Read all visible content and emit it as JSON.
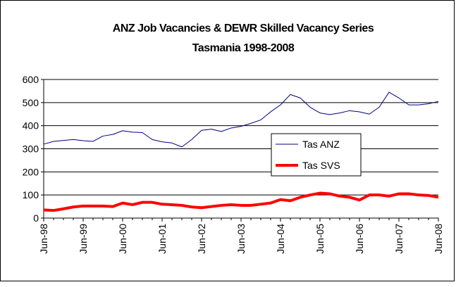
{
  "chart_data": {
    "type": "line",
    "title": "ANZ Job Vacancies & DEWR Skilled Vacancy Series",
    "subtitle": "Tasmania 1998-2008",
    "categories": [
      "Jun-98",
      null,
      null,
      null,
      "Jun-99",
      null,
      null,
      null,
      "Jun-00",
      null,
      null,
      null,
      "Jun-01",
      null,
      null,
      null,
      "Jun-02",
      null,
      null,
      null,
      "Jun-03",
      null,
      null,
      null,
      "Jun-04",
      null,
      null,
      null,
      "Jun-05",
      null,
      null,
      null,
      "Jun-06",
      null,
      null,
      null,
      "Jun-07",
      null,
      null,
      null,
      "Jun-08"
    ],
    "series": [
      {
        "name": "Tas ANZ",
        "color": "#000080",
        "width": 1,
        "values": [
          320,
          332,
          336,
          340,
          335,
          332,
          355,
          362,
          378,
          372,
          370,
          340,
          330,
          325,
          308,
          340,
          380,
          385,
          375,
          390,
          397,
          410,
          425,
          460,
          490,
          535,
          520,
          480,
          455,
          448,
          455,
          465,
          460,
          450,
          480,
          545,
          520,
          490,
          490,
          495,
          505
        ]
      },
      {
        "name": "Tas SVS",
        "color": "#ff0000",
        "width": 4,
        "values": [
          35,
          33,
          40,
          48,
          52,
          52,
          52,
          50,
          65,
          58,
          68,
          68,
          60,
          58,
          55,
          48,
          45,
          50,
          55,
          58,
          55,
          55,
          60,
          65,
          80,
          75,
          90,
          100,
          108,
          105,
          95,
          90,
          78,
          100,
          100,
          95,
          105,
          105,
          100,
          98,
          90
        ]
      }
    ],
    "ylim": [
      0,
      600
    ],
    "yticks": [
      0,
      100,
      200,
      300,
      400,
      500,
      600
    ],
    "grid": true,
    "legend": "center-right"
  }
}
